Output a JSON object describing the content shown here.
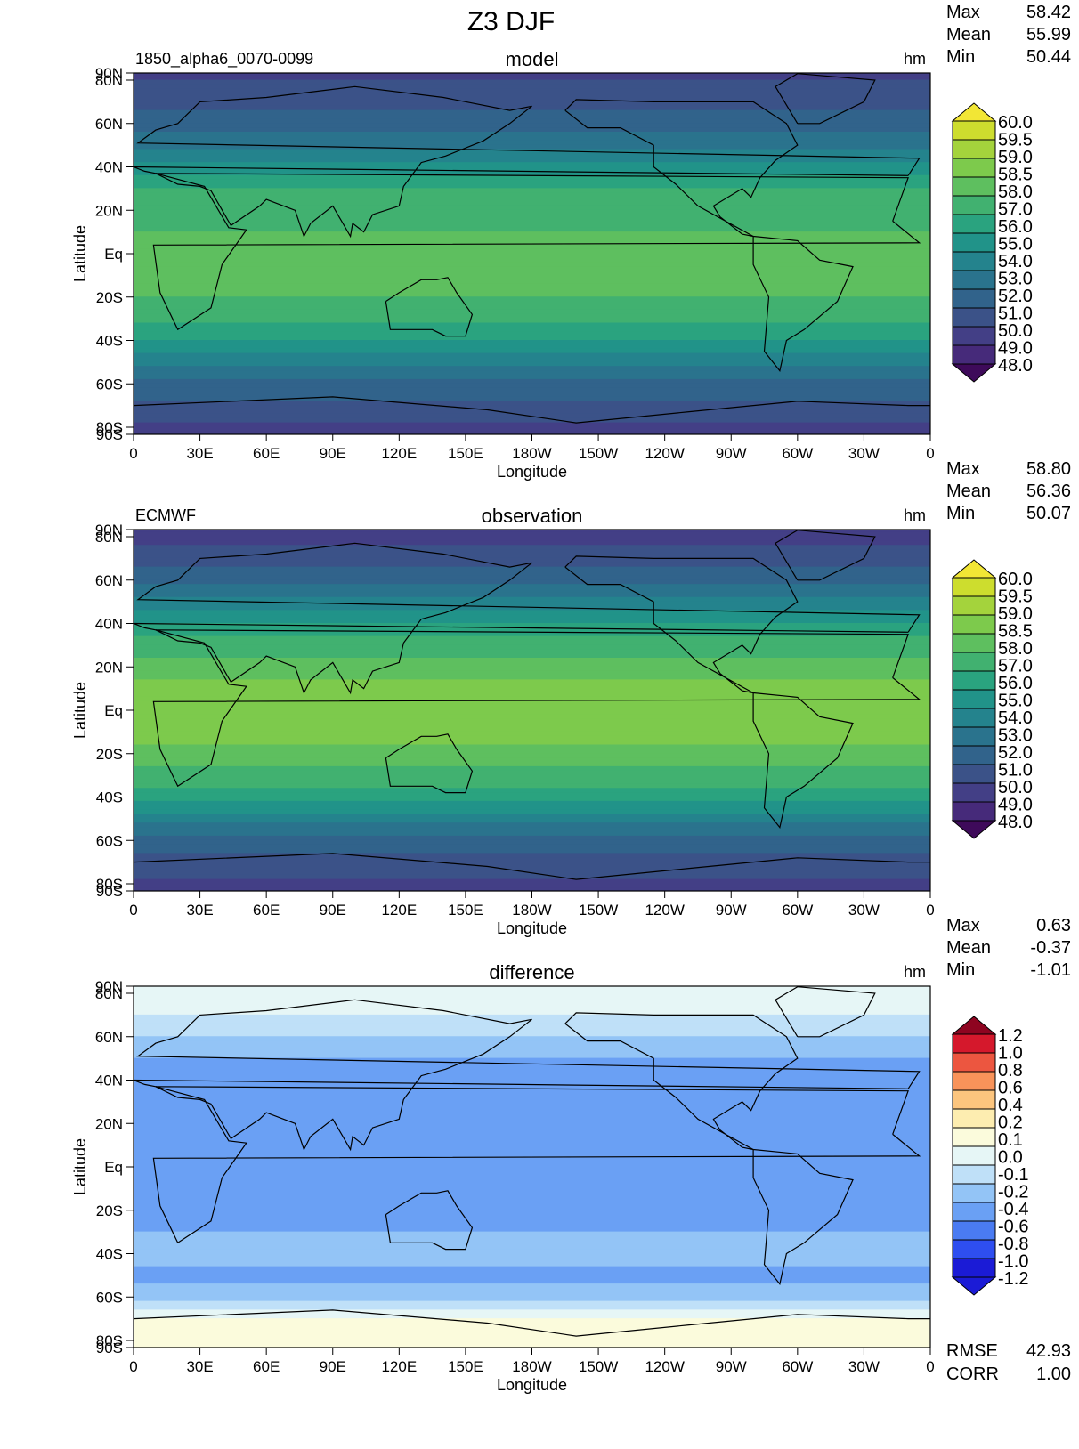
{
  "title": "Z3 DJF",
  "axis": {
    "xlabel": "Longitude",
    "ylabel": "Latitude",
    "x_ticks": [
      "0",
      "30E",
      "60E",
      "90E",
      "120E",
      "150E",
      "180W",
      "150W",
      "120W",
      "90W",
      "60W",
      "30W",
      "0"
    ],
    "y_ticks": [
      "90N",
      "80N",
      "60N",
      "40N",
      "20N",
      "Eq",
      "20S",
      "40S",
      "60S",
      "80S",
      "90S"
    ]
  },
  "stat_labels": {
    "max": "Max",
    "mean": "Mean",
    "min": "Min",
    "rmse": "RMSE",
    "corr": "CORR"
  },
  "colors": {
    "sequential": [
      "#3e0a5a",
      "#462a7a",
      "#433f86",
      "#3b5288",
      "#31638b",
      "#2a738d",
      "#24838d",
      "#219389",
      "#2aa37f",
      "#41b170",
      "#5ebf5f",
      "#7dca4c",
      "#a4d33c",
      "#cddd2e",
      "#f2e635"
    ],
    "diverging": [
      "#1b1bd6",
      "#2e4ef0",
      "#4a7bf2",
      "#6aa0f4",
      "#93c4f6",
      "#bfe0f8",
      "#e6f6f6",
      "#fbfbdc",
      "#fdedb0",
      "#fcc57e",
      "#f8935a",
      "#ec5640",
      "#d5182c",
      "#8e0420"
    ]
  },
  "chart_data": [
    {
      "type": "heatmap",
      "title": "model",
      "case": "1850_alpha6_0070-0099",
      "units": "hm",
      "stats": {
        "max": "58.42",
        "mean": "55.99",
        "min": "50.44"
      },
      "colorbar": {
        "levels": [
          "60.0",
          "59.5",
          "59.0",
          "58.5",
          "58.0",
          "57.0",
          "56.0",
          "55.0",
          "54.0",
          "53.0",
          "52.0",
          "51.0",
          "50.0",
          "49.0",
          "48.0"
        ]
      },
      "zonal_profile": {
        "lat": [
          90,
          80,
          70,
          60,
          50,
          40,
          30,
          20,
          10,
          0,
          -10,
          -20,
          -30,
          -40,
          -50,
          -60,
          -70,
          -80,
          -90
        ],
        "value": [
          50.4,
          51.0,
          51.6,
          52.5,
          53.8,
          55.5,
          57.1,
          57.8,
          58.0,
          58.0,
          58.1,
          58.0,
          57.4,
          56.0,
          54.3,
          52.6,
          51.8,
          50.9,
          50.6
        ]
      }
    },
    {
      "type": "heatmap",
      "title": "observation",
      "case": "ECMWF",
      "units": "hm",
      "stats": {
        "max": "58.80",
        "mean": "56.36",
        "min": "50.07"
      },
      "colorbar": {
        "levels": [
          "60.0",
          "59.5",
          "59.0",
          "58.5",
          "58.0",
          "57.0",
          "56.0",
          "55.0",
          "54.0",
          "53.0",
          "52.0",
          "51.0",
          "50.0",
          "49.0",
          "48.0"
        ]
      },
      "zonal_profile": {
        "lat": [
          90,
          80,
          70,
          60,
          50,
          40,
          30,
          20,
          10,
          0,
          -10,
          -20,
          -30,
          -40,
          -50,
          -60,
          -70,
          -80,
          -90
        ],
        "value": [
          50.1,
          50.7,
          51.5,
          52.7,
          54.2,
          56.0,
          57.6,
          58.3,
          58.6,
          58.6,
          58.6,
          58.4,
          57.7,
          56.3,
          54.5,
          52.7,
          51.6,
          50.9,
          50.5
        ]
      }
    },
    {
      "type": "heatmap",
      "title": "difference",
      "case": "",
      "units": "hm",
      "stats": {
        "max": "0.63",
        "mean": "-0.37",
        "min": "-1.01",
        "rmse": "42.93",
        "corr": "1.00"
      },
      "colorbar": {
        "levels": [
          "1.2",
          "1.0",
          "0.8",
          "0.6",
          "0.4",
          "0.2",
          "0.1",
          "0.0",
          "-0.1",
          "-0.2",
          "-0.4",
          "-0.6",
          "-0.8",
          "-1.0",
          "-1.2"
        ]
      },
      "zonal_profile": {
        "lat": [
          90,
          80,
          70,
          60,
          50,
          40,
          30,
          20,
          10,
          0,
          -10,
          -20,
          -30,
          -40,
          -50,
          -60,
          -70,
          -80,
          -90
        ],
        "value": [
          0.0,
          -0.05,
          -0.1,
          -0.2,
          -0.4,
          -0.6,
          -0.5,
          -0.5,
          -0.45,
          -0.4,
          -0.45,
          -0.45,
          -0.4,
          -0.3,
          -0.5,
          -0.25,
          0.0,
          0.1,
          0.0
        ]
      }
    }
  ]
}
